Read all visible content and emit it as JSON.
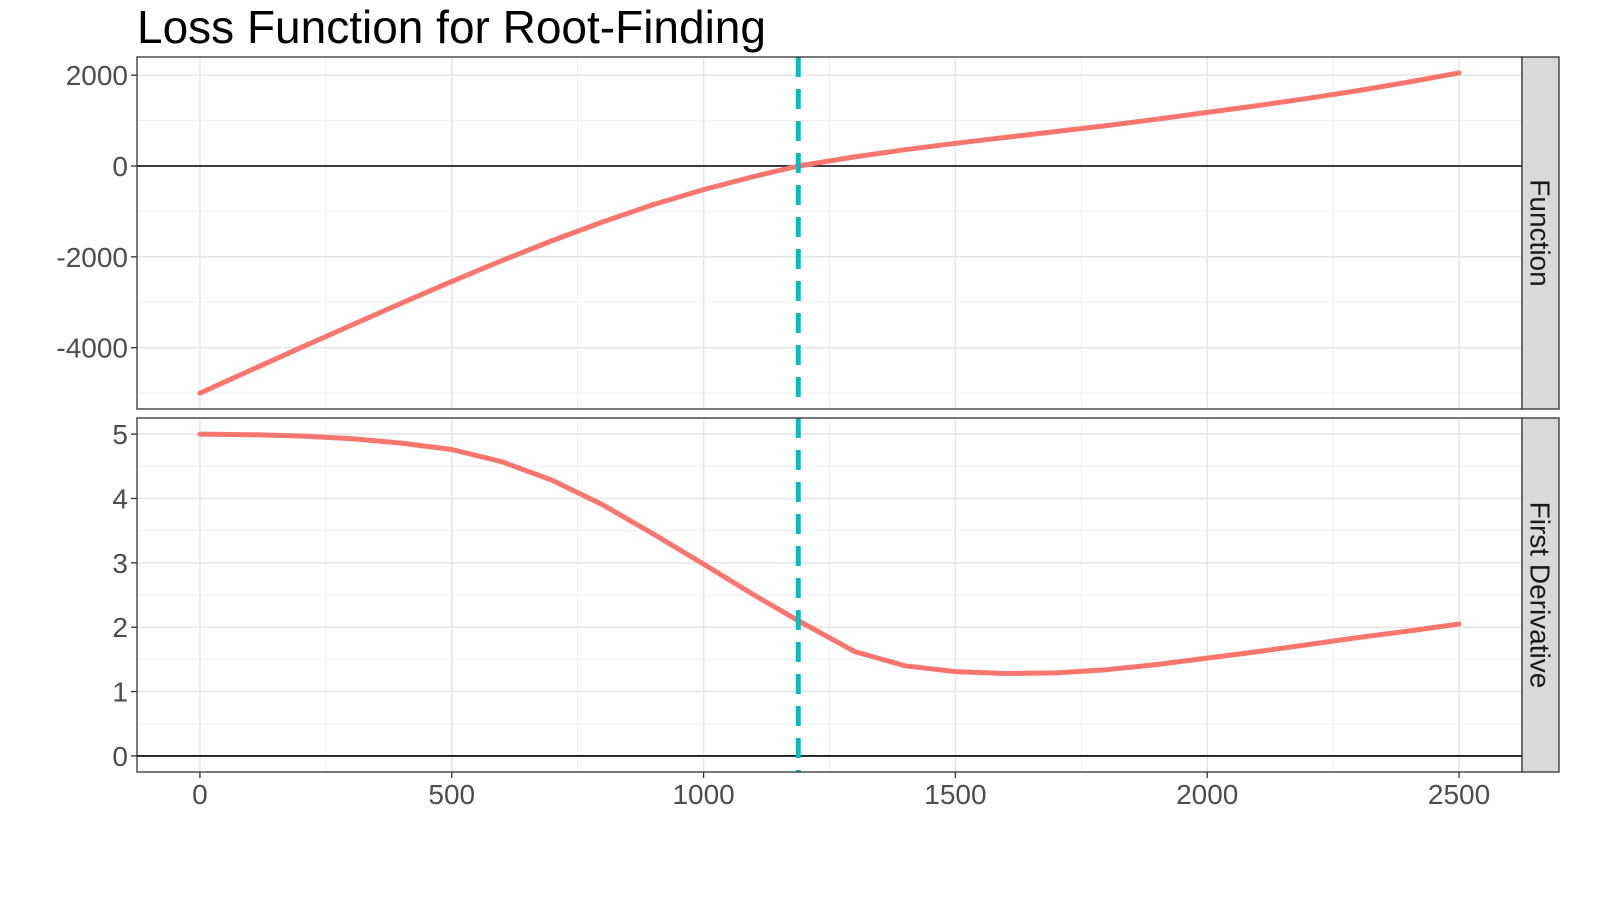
{
  "chart_data": {
    "type": "line",
    "title": "Loss Function for Root-Finding",
    "xlabel": "",
    "ylabel": "",
    "xlim": [
      -125,
      2625
    ],
    "x_ticks": [
      0,
      500,
      1000,
      1500,
      2000,
      2500
    ],
    "x_minor_ticks": [
      250,
      750,
      1250,
      1750,
      2250
    ],
    "grid": true,
    "legend": "none",
    "colors": {
      "curve": "#f8766d",
      "root_line": "#00bfc4",
      "zero_line": "#000000",
      "strip": "#d9d9d9"
    },
    "root_x": 1188,
    "panels": [
      {
        "strip": "Function",
        "ylim": [
          -5350,
          2400
        ],
        "y_ticks": [
          -4000,
          -2000,
          0,
          2000
        ],
        "y_minor_ticks": [
          -5000,
          -3000,
          -1000,
          1000
        ],
        "zero_line": true,
        "series": [
          {
            "x": [
              0,
              100,
              200,
              300,
              400,
              500,
              600,
              700,
              800,
              900,
              1000,
              1100,
              1188,
              1300,
              1400,
              1500,
              1600,
              1700,
              1800,
              1900,
              2000,
              2100,
              2200,
              2300,
              2400,
              2500
            ],
            "y": [
              -5000,
              -4500,
              -4000,
              -3510,
              -3020,
              -2540,
              -2080,
              -1640,
              -1230,
              -850,
              -520,
              -230,
              0,
              200,
              360,
              500,
              630,
              760,
              890,
              1030,
              1180,
              1330,
              1490,
              1660,
              1850,
              2050
            ]
          }
        ]
      },
      {
        "strip": "First Derivative",
        "ylim": [
          -0.25,
          5.25
        ],
        "y_ticks": [
          0,
          1,
          2,
          3,
          4,
          5
        ],
        "y_minor_ticks": [
          0.5,
          1.5,
          2.5,
          3.5,
          4.5
        ],
        "zero_line": true,
        "series": [
          {
            "x": [
              0,
              100,
              200,
              300,
              400,
              500,
              600,
              700,
              800,
              900,
              1000,
              1100,
              1188,
              1300,
              1400,
              1500,
              1600,
              1700,
              1800,
              1900,
              2000,
              2100,
              2200,
              2300,
              2400,
              2500
            ],
            "y": [
              5.0,
              4.99,
              4.97,
              4.93,
              4.86,
              4.76,
              4.57,
              4.28,
              3.9,
              3.45,
              2.98,
              2.5,
              2.1,
              1.62,
              1.4,
              1.31,
              1.28,
              1.29,
              1.34,
              1.42,
              1.52,
              1.62,
              1.73,
              1.84,
              1.94,
              2.05
            ]
          }
        ]
      }
    ]
  }
}
